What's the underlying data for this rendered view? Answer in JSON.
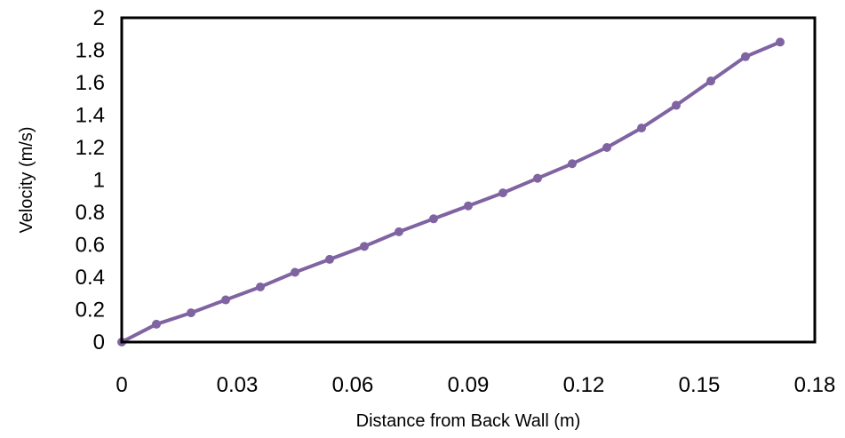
{
  "chart_data": {
    "type": "line",
    "title": "",
    "xlabel": "Distance from Back Wall (m)",
    "ylabel": "Velocity (m/s)",
    "xlim": [
      0,
      0.18
    ],
    "ylim": [
      0,
      2
    ],
    "xticks": [
      0,
      0.03,
      0.06,
      0.09,
      0.12,
      0.15,
      0.18
    ],
    "xtick_labels": [
      "0",
      "0.03",
      "0.06",
      "0.09",
      "0.12",
      "0.15",
      "0.18"
    ],
    "yticks": [
      0,
      0.2,
      0.4,
      0.6,
      0.8,
      1,
      1.2,
      1.4,
      1.6,
      1.8,
      2
    ],
    "ytick_labels": [
      "0",
      "0.2",
      "0.4",
      "0.6",
      "0.8",
      "1",
      "1.2",
      "1.4",
      "1.6",
      "1.8",
      "2"
    ],
    "grid": false,
    "legend": "none",
    "series": [
      {
        "color": "#8064A2",
        "marker": "circle",
        "x": [
          0,
          0.009,
          0.018,
          0.027,
          0.036,
          0.045,
          0.054,
          0.063,
          0.072,
          0.081,
          0.09,
          0.099,
          0.108,
          0.117,
          0.126,
          0.135,
          0.144,
          0.153,
          0.162,
          0.171
        ],
        "y": [
          0,
          0.11,
          0.18,
          0.26,
          0.34,
          0.43,
          0.51,
          0.59,
          0.68,
          0.76,
          0.84,
          0.92,
          1.01,
          1.1,
          1.2,
          1.32,
          1.46,
          1.61,
          1.76,
          1.85
        ]
      }
    ]
  }
}
